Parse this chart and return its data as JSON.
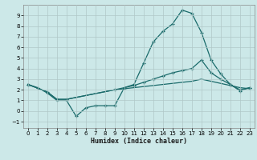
{
  "title": "",
  "xlabel": "Humidex (Indice chaleur)",
  "background_color": "#cce8e8",
  "grid_color": "#b0c8c8",
  "line_color": "#1a6b6b",
  "xlim": [
    -0.5,
    23.5
  ],
  "ylim": [
    -1.6,
    10.0
  ],
  "xticks": [
    0,
    1,
    2,
    3,
    4,
    5,
    6,
    7,
    8,
    9,
    10,
    11,
    12,
    13,
    14,
    15,
    16,
    17,
    18,
    19,
    20,
    21,
    22,
    23
  ],
  "yticks": [
    -1,
    0,
    1,
    2,
    3,
    4,
    5,
    6,
    7,
    8,
    9
  ],
  "series1_x": [
    0,
    1,
    2,
    3,
    4,
    5,
    6,
    7,
    8,
    9,
    10,
    11,
    12,
    13,
    14,
    15,
    16,
    17,
    18,
    19,
    20,
    21,
    22,
    23
  ],
  "series1_y": [
    2.5,
    2.2,
    1.7,
    1.0,
    1.0,
    -0.5,
    0.3,
    0.5,
    0.5,
    0.5,
    2.2,
    2.5,
    4.5,
    6.5,
    7.5,
    8.2,
    9.5,
    9.2,
    7.4,
    4.8,
    3.5,
    2.5,
    1.9,
    2.2
  ],
  "series2_x": [
    0,
    2,
    3,
    4,
    9,
    10,
    11,
    12,
    13,
    14,
    15,
    16,
    17,
    18,
    19,
    20,
    21,
    22,
    23
  ],
  "series2_y": [
    2.5,
    1.8,
    1.1,
    1.1,
    2.0,
    2.2,
    2.4,
    2.7,
    3.0,
    3.3,
    3.6,
    3.8,
    4.0,
    4.8,
    3.6,
    3.0,
    2.5,
    2.0,
    2.2
  ],
  "series3_x": [
    0,
    2,
    3,
    4,
    9,
    10,
    11,
    12,
    13,
    14,
    15,
    16,
    17,
    18,
    19,
    20,
    21,
    22,
    23
  ],
  "series3_y": [
    2.5,
    1.8,
    1.1,
    1.1,
    2.0,
    2.1,
    2.2,
    2.3,
    2.4,
    2.5,
    2.6,
    2.7,
    2.8,
    3.0,
    2.8,
    2.6,
    2.4,
    2.2,
    2.1
  ]
}
